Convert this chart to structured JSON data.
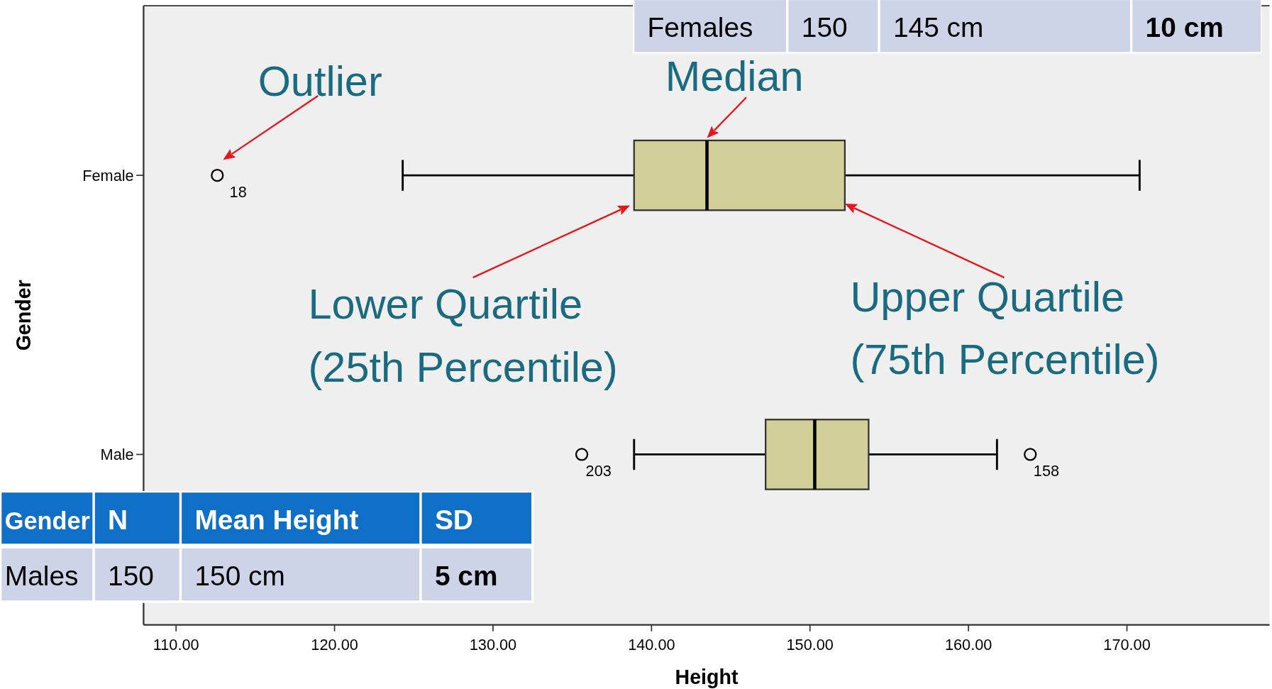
{
  "chart_data": {
    "type": "box",
    "orientation": "horizontal",
    "xlabel": "Height",
    "ylabel": "Gender",
    "categories": [
      "Female",
      "Male"
    ],
    "boxes": [
      {
        "low": 124.3,
        "q1": 138.9,
        "median": 143.5,
        "q3": 152.2,
        "high": 170.8,
        "outliers": [
          112.6
        ]
      },
      {
        "low": 138.9,
        "q1": 147.2,
        "median": 150.3,
        "q3": 153.7,
        "high": 161.8,
        "outliers": [
          135.6,
          163.9
        ]
      }
    ],
    "color": "#d3cf98",
    "xlim": [
      107.95,
      179
    ],
    "xticks": [
      {
        "value": 110,
        "label": "110.00"
      },
      {
        "value": 120,
        "label": "120.00"
      },
      {
        "value": 130,
        "label": "130.00"
      },
      {
        "value": 140,
        "label": "140.00"
      },
      {
        "value": 150,
        "label": "150.00"
      },
      {
        "value": 160,
        "label": "160.00"
      },
      {
        "value": 170,
        "label": "170.00"
      }
    ],
    "annotations": [
      "Outlier",
      {
        "text": "Median",
        "x": 143.5,
        "y": "Female"
      },
      {
        "text": "Lower Quartile\n(25th Percentile)",
        "x": 138.9,
        "y": "Female"
      },
      {
        "text": "Upper Quartile\n(75th Percentile)",
        "x": 152.2,
        "y": "Female"
      },
      "18",
      "203",
      "158",
      "Females",
      "150",
      "145 cm",
      "10 cm",
      "Gender",
      "N",
      "Mean Height",
      "SD",
      "Males",
      "150",
      "150 cm",
      "5 cm"
    ]
  }
}
